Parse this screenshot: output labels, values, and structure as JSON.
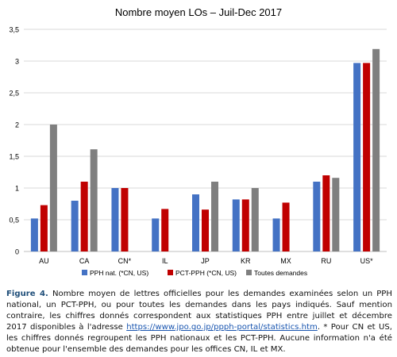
{
  "chart_data": {
    "type": "bar",
    "title": "Nombre moyen LOs – Juil-Dec 2017",
    "categories": [
      "AU",
      "CA",
      "CN*",
      "IL",
      "JP",
      "KR",
      "MX",
      "RU",
      "US*"
    ],
    "ylim": [
      0,
      3.5
    ],
    "yticks": [
      "0",
      "0,5",
      "1",
      "1,5",
      "2",
      "2,5",
      "3",
      "3,5"
    ],
    "grid": true,
    "legend_position": "bottom",
    "series": [
      {
        "name": "PPH nat. (*CN, US)",
        "color": "#4472c4",
        "values": [
          0.52,
          0.8,
          1.0,
          0.52,
          0.9,
          0.82,
          0.52,
          1.1,
          2.97
        ]
      },
      {
        "name": "PCT-PPH (*CN, US)",
        "color": "#c00000",
        "values": [
          0.73,
          1.1,
          1.0,
          0.67,
          0.66,
          0.82,
          0.77,
          1.2,
          2.97
        ]
      },
      {
        "name": "Toutes demandes",
        "color": "#7f7f7f",
        "values": [
          2.0,
          1.61,
          null,
          null,
          1.1,
          1.0,
          null,
          1.16,
          3.19
        ]
      }
    ]
  },
  "caption": {
    "figure_label": "Figure 4.",
    "text_before_link": "Nombre moyen de lettres officielles pour les demandes examinées selon un PPH national, un PCT-PPH, ou pour toutes les demandes dans les pays indiqués. Sauf mention contraire, les chiffres donnés correspondent aux statistiques PPH entre juillet et décembre 2017 disponibles à l'adresse",
    "link_text": "https://www.jpo.go.jp/ppph-portal/statistics.htm",
    "text_after_link": ". * Pour CN et US, les chiffres donnés regroupent les PPH nationaux et les PCT-PPH. Aucune information n'a été obtenue pour l'ensemble des demandes pour les offices CN, IL et MX."
  }
}
